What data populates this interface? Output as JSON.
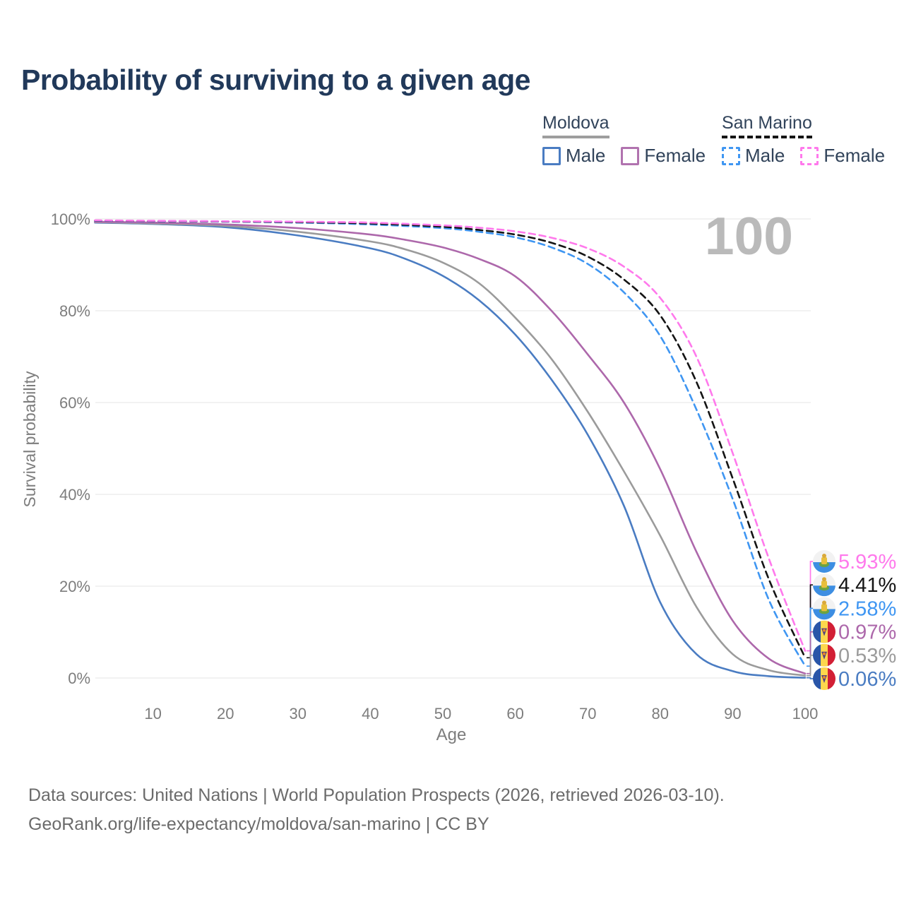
{
  "title": "Probability of surviving to a given age",
  "watermark": "100",
  "legend": {
    "groups": [
      {
        "label": "Moldova",
        "line_style": "solid",
        "underline_color": "#9e9e9e",
        "items": [
          {
            "label": "Male",
            "color": "#4a7cc2"
          },
          {
            "label": "Female",
            "color": "#b173af"
          }
        ]
      },
      {
        "label": "San Marino",
        "line_style": "dashed",
        "underline_color": "#151515",
        "items": [
          {
            "label": "Male",
            "color": "#3f96f2"
          },
          {
            "label": "Female",
            "color": "#ff79ec"
          }
        ]
      }
    ]
  },
  "chart_data": {
    "type": "line",
    "title": "Probability of surviving to a given age",
    "xlabel": "Age",
    "ylabel": "Survival probability",
    "xlim": [
      0,
      100.8
    ],
    "ylim": [
      0,
      100
    ],
    "grid": "horizontal",
    "legend_position": "top-right",
    "x_ticks": [
      10,
      20,
      30,
      40,
      50,
      60,
      70,
      80,
      90,
      100
    ],
    "y_ticks": [
      {
        "value": 100,
        "label": "100%"
      },
      {
        "value": 80,
        "label": "80%"
      },
      {
        "value": 60,
        "label": "60%"
      },
      {
        "value": 40,
        "label": "40%"
      },
      {
        "value": 20,
        "label": "20%"
      },
      {
        "value": 0,
        "label": "0%"
      }
    ],
    "series": [
      {
        "id": "moldova-male",
        "name": "Moldova Male",
        "country": "Moldova",
        "sex": "Male",
        "color": "#4a7cc2",
        "dashed": false,
        "flag": "moldova",
        "end_label": "0.06%",
        "points": [
          [
            2,
            99.2
          ],
          [
            10,
            98.9
          ],
          [
            20,
            98.2
          ],
          [
            30,
            96.4
          ],
          [
            40,
            93.6
          ],
          [
            45,
            91.2
          ],
          [
            50,
            87.6
          ],
          [
            55,
            82.3
          ],
          [
            60,
            74.8
          ],
          [
            65,
            65.0
          ],
          [
            70,
            53.0
          ],
          [
            75,
            37.5
          ],
          [
            80,
            16.5
          ],
          [
            85,
            5.2
          ],
          [
            90,
            1.5
          ],
          [
            95,
            0.4
          ],
          [
            100,
            0.06
          ]
        ]
      },
      {
        "id": "moldova-total",
        "name": "Moldova Total",
        "country": "Moldova",
        "sex": "Both",
        "color": "#9b9b9b",
        "dashed": false,
        "flag": "moldova",
        "end_label": "0.53%",
        "points": [
          [
            2,
            99.3
          ],
          [
            10,
            99.0
          ],
          [
            20,
            98.5
          ],
          [
            30,
            97.2
          ],
          [
            40,
            95.1
          ],
          [
            45,
            93.3
          ],
          [
            50,
            90.5
          ],
          [
            55,
            86.0
          ],
          [
            60,
            78.5
          ],
          [
            65,
            69.5
          ],
          [
            70,
            58.0
          ],
          [
            75,
            45.0
          ],
          [
            80,
            31.0
          ],
          [
            85,
            15.5
          ],
          [
            90,
            5.2
          ],
          [
            95,
            1.7
          ],
          [
            100,
            0.53
          ]
        ]
      },
      {
        "id": "moldova-female",
        "name": "Moldova Female",
        "country": "Moldova",
        "sex": "Female",
        "color": "#ad68ab",
        "dashed": false,
        "flag": "moldova",
        "end_label": "0.97%",
        "points": [
          [
            2,
            99.4
          ],
          [
            10,
            99.2
          ],
          [
            20,
            98.8
          ],
          [
            30,
            98.0
          ],
          [
            40,
            96.6
          ],
          [
            45,
            95.4
          ],
          [
            50,
            93.8
          ],
          [
            55,
            91.3
          ],
          [
            60,
            87.5
          ],
          [
            65,
            80.0
          ],
          [
            70,
            70.5
          ],
          [
            75,
            60.0
          ],
          [
            80,
            45.5
          ],
          [
            85,
            27.5
          ],
          [
            90,
            12.5
          ],
          [
            95,
            4.2
          ],
          [
            100,
            0.97
          ]
        ]
      },
      {
        "id": "sanmarino-male",
        "name": "San Marino Male",
        "country": "San Marino",
        "sex": "Male",
        "color": "#3f96f2",
        "dashed": true,
        "flag": "san-marino",
        "end_label": "2.58%",
        "points": [
          [
            2,
            99.6
          ],
          [
            10,
            99.5
          ],
          [
            20,
            99.4
          ],
          [
            30,
            99.2
          ],
          [
            40,
            98.8
          ],
          [
            50,
            98.0
          ],
          [
            55,
            97.2
          ],
          [
            60,
            96.0
          ],
          [
            65,
            93.8
          ],
          [
            70,
            90.2
          ],
          [
            75,
            84.0
          ],
          [
            80,
            74.5
          ],
          [
            85,
            58.5
          ],
          [
            90,
            39.0
          ],
          [
            95,
            17.0
          ],
          [
            100,
            2.58
          ]
        ]
      },
      {
        "id": "sanmarino-total",
        "name": "San Marino Total",
        "country": "San Marino",
        "sex": "Both",
        "color": "#141414",
        "dashed": true,
        "flag": "san-marino",
        "end_label": "4.41%",
        "points": [
          [
            2,
            99.65
          ],
          [
            10,
            99.55
          ],
          [
            20,
            99.45
          ],
          [
            30,
            99.3
          ],
          [
            40,
            99.0
          ],
          [
            50,
            98.3
          ],
          [
            55,
            97.6
          ],
          [
            60,
            96.6
          ],
          [
            65,
            94.8
          ],
          [
            70,
            91.8
          ],
          [
            75,
            86.8
          ],
          [
            80,
            79.0
          ],
          [
            85,
            64.5
          ],
          [
            90,
            43.5
          ],
          [
            95,
            21.5
          ],
          [
            100,
            4.41
          ]
        ]
      },
      {
        "id": "sanmarino-female",
        "name": "San Marino Female",
        "country": "San Marino",
        "sex": "Female",
        "color": "#ff79ec",
        "dashed": true,
        "flag": "san-marino",
        "end_label": "5.93%",
        "points": [
          [
            2,
            99.7
          ],
          [
            10,
            99.6
          ],
          [
            20,
            99.5
          ],
          [
            30,
            99.4
          ],
          [
            40,
            99.2
          ],
          [
            50,
            98.6
          ],
          [
            55,
            98.1
          ],
          [
            60,
            97.3
          ],
          [
            65,
            95.9
          ],
          [
            70,
            93.6
          ],
          [
            75,
            89.6
          ],
          [
            80,
            82.8
          ],
          [
            85,
            70.0
          ],
          [
            90,
            49.0
          ],
          [
            95,
            26.0
          ],
          [
            100,
            5.93
          ]
        ]
      }
    ]
  },
  "footer": {
    "line1": "Data sources: United Nations | World Population Prospects (2026, retrieved 2026-03-10).",
    "line2": "GeoRank.org/life-expectancy/moldova/san-marino | CC BY"
  },
  "colors": {
    "title": "#21395a",
    "axis_text": "#7d7d7d",
    "gridline": "#ebebeb",
    "watermark": "#bababa",
    "footer_text": "#6b6b6b",
    "legend_text": "#31435a"
  }
}
